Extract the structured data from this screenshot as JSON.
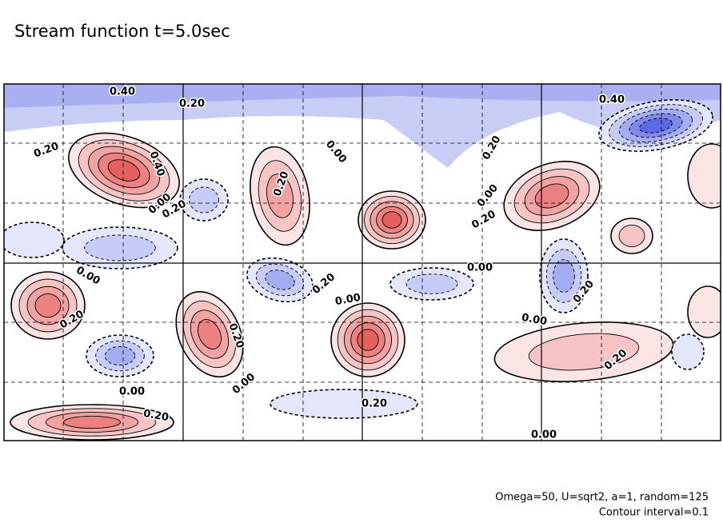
{
  "chart_data": {
    "type": "contour",
    "title": "Stream function t=5.0sec",
    "notes": [
      "Omega=50, U=sqrt2, a=1, random=125",
      "Contour interval=0.1"
    ],
    "contour_labels": [
      "0.40",
      "0.20",
      "0.40",
      "0.20",
      "0.40",
      "0.00",
      "0.20",
      "0.20",
      "0.00",
      "0.20",
      "0.00",
      "0.20",
      "0.00",
      "0.00",
      "0.20",
      "0.00",
      "0.20",
      "0.20",
      "0.20",
      "0.00",
      "0.00",
      "0.20",
      "0.00",
      "0.20",
      "0.20",
      "0.00"
    ]
  }
}
